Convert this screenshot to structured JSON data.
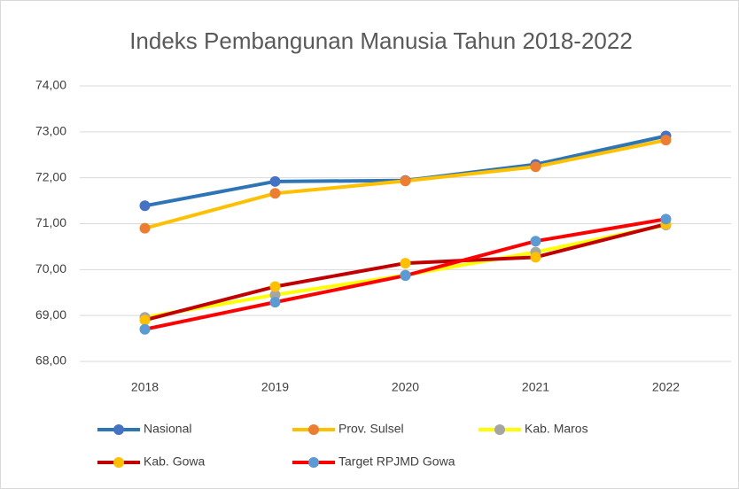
{
  "chart_data": {
    "type": "line",
    "title": "Indeks Pembangunan Manusia Tahun 2018-2022",
    "categories": [
      "2018",
      "2019",
      "2020",
      "2021",
      "2022"
    ],
    "series": [
      {
        "name": "Nasional",
        "color": "#2e75b6",
        "marker_color": "#4472c4",
        "values": [
          71.39,
          71.92,
          71.94,
          72.29,
          72.91
        ]
      },
      {
        "name": "Prov. Sulsel",
        "color": "#ffc000",
        "marker_color": "#ed7d31",
        "values": [
          70.9,
          71.66,
          71.93,
          72.24,
          72.82
        ]
      },
      {
        "name": "Kab. Maros",
        "color": "#ffff00",
        "marker_color": "#a5a5a5",
        "values": [
          68.96,
          69.45,
          69.88,
          70.38,
          70.97
        ]
      },
      {
        "name": "Kab. Gowa",
        "color": "#c00000",
        "marker_color": "#ffc000",
        "values": [
          68.9,
          69.63,
          70.14,
          70.27,
          70.99
        ]
      },
      {
        "name": "Target RPJMD Gowa",
        "color": "#ff0000",
        "marker_color": "#5b9bd5",
        "values": [
          68.7,
          69.29,
          69.87,
          70.62,
          71.1
        ]
      }
    ],
    "ylim": [
      68,
      74
    ],
    "yticks": [
      {
        "value": 68,
        "label": "68,00"
      },
      {
        "value": 69,
        "label": "69,00"
      },
      {
        "value": 70,
        "label": "70,00"
      },
      {
        "value": 71,
        "label": "71,00"
      },
      {
        "value": 72,
        "label": "72,00"
      },
      {
        "value": 73,
        "label": "73,00"
      },
      {
        "value": 74,
        "label": "74,00"
      }
    ],
    "grid": true
  }
}
